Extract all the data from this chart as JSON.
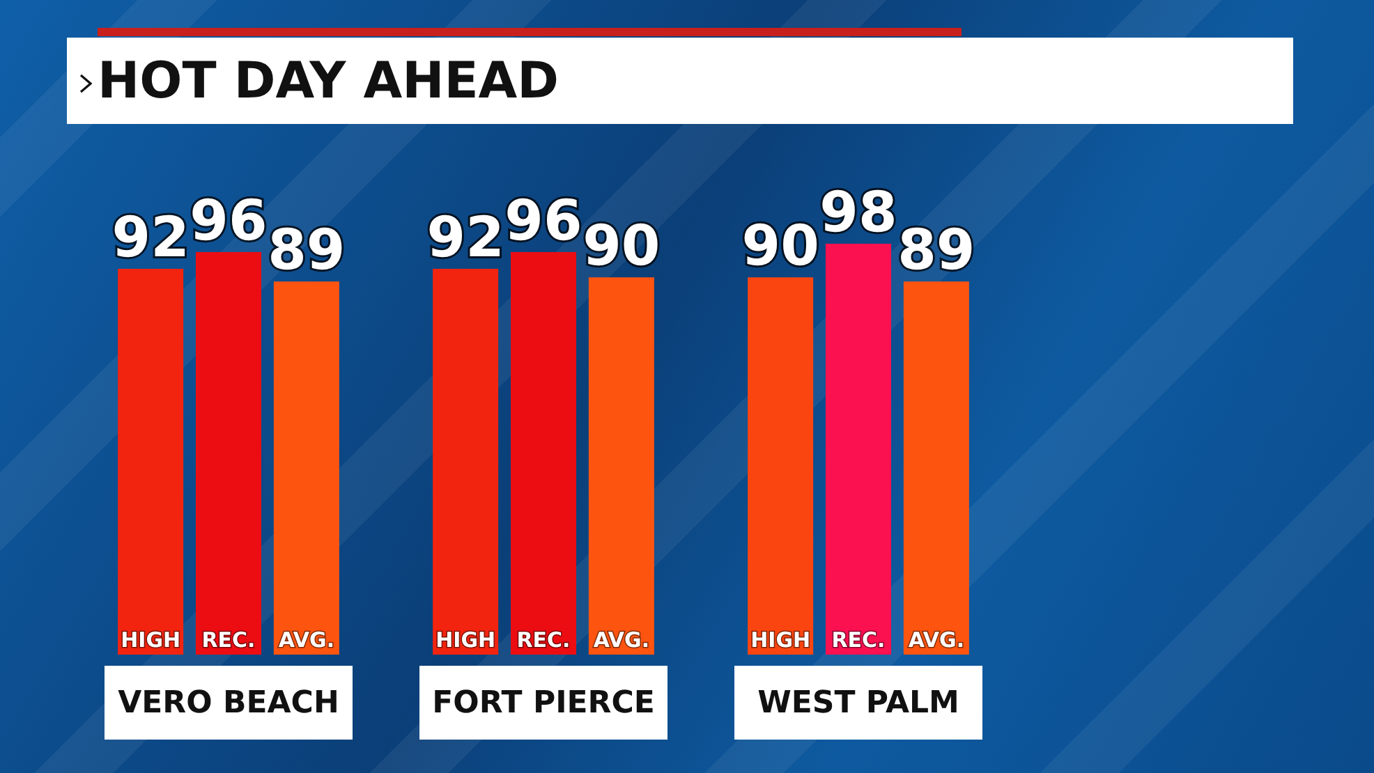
{
  "chart_data": {
    "type": "bar",
    "title": "HOT DAY AHEAD",
    "categories": [
      "VERO BEACH",
      "FORT PIERCE",
      "WEST PALM"
    ],
    "series": [
      {
        "name": "HIGH",
        "colors": [
          "#f2240f",
          "#f2240f",
          "#fb4510"
        ],
        "values": [
          92,
          92,
          90
        ]
      },
      {
        "name": "REC.",
        "colors": [
          "#ec0d12",
          "#ec0d12",
          "#fb1050"
        ],
        "values": [
          96,
          96,
          98
        ]
      },
      {
        "name": "AVG.",
        "colors": [
          "#fd5410",
          "#fd5410",
          "#fd5410"
        ],
        "values": [
          89,
          90,
          89
        ]
      }
    ],
    "data_labels": true
  }
}
